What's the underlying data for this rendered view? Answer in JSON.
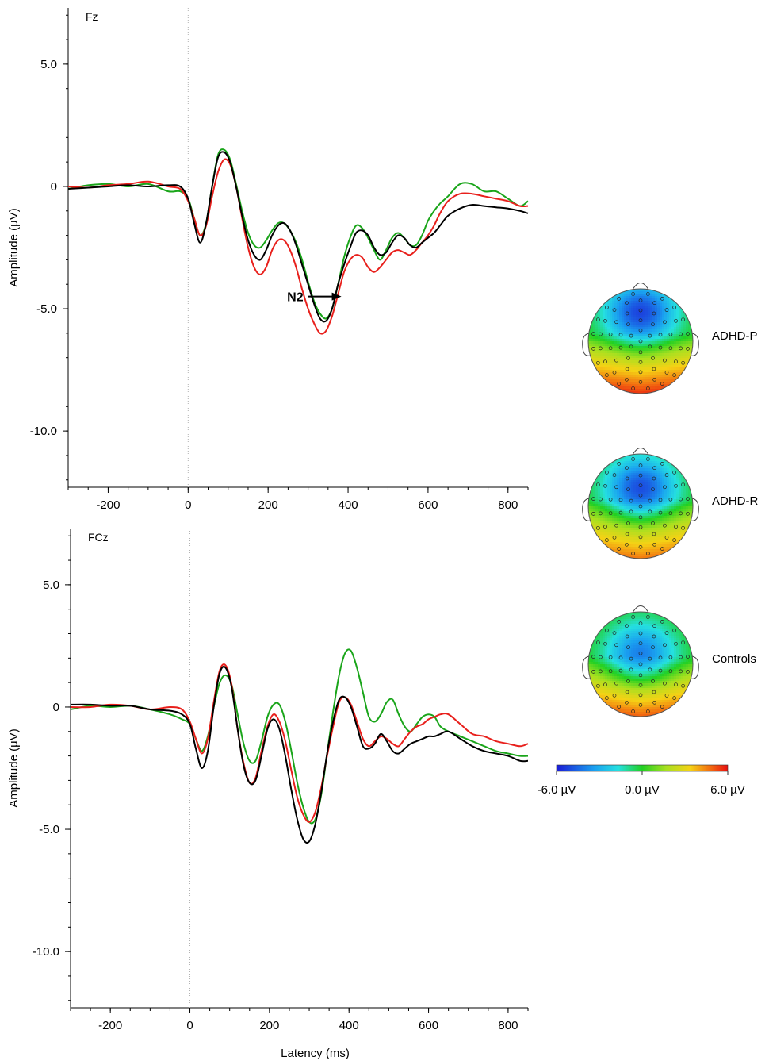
{
  "colors": {
    "ADHD-P": "#000000",
    "ADHD-R": "#e8201c",
    "Controls": "#1aa51a"
  },
  "annotation": {
    "label": "N2"
  },
  "chart_data": [
    {
      "type": "line",
      "channel": "Fz",
      "xlabel": "",
      "ylabel": "Amplitude (µV)",
      "xlim": [
        -300,
        850
      ],
      "ylim": [
        -12.3,
        7.3
      ],
      "x_ticks": [
        -200,
        0,
        200,
        400,
        600,
        800
      ],
      "y_ticks": [
        5.0,
        0,
        -5.0,
        -10.0
      ],
      "y_tick_labels": [
        "5.0",
        "0",
        "-5.0",
        "-10.0"
      ],
      "annotation": {
        "text": "N2",
        "x": 300,
        "y": -4.5
      },
      "series": [
        {
          "key": "ADHD-P",
          "color": "#000000",
          "x": [
            -300,
            -250,
            -200,
            -150,
            -100,
            -50,
            -20,
            0,
            15,
            30,
            45,
            60,
            75,
            90,
            105,
            120,
            135,
            150,
            165,
            180,
            195,
            210,
            225,
            240,
            255,
            270,
            285,
            300,
            315,
            330,
            345,
            360,
            375,
            390,
            405,
            420,
            435,
            450,
            465,
            480,
            495,
            510,
            525,
            540,
            555,
            570,
            585,
            600,
            615,
            630,
            650,
            680,
            710,
            740,
            770,
            800,
            830,
            850
          ],
          "y": [
            -0.1,
            -0.05,
            0,
            0.05,
            0,
            0.05,
            0.0,
            -0.5,
            -1.5,
            -2.3,
            -1.5,
            0.0,
            1.2,
            1.4,
            1.0,
            0.0,
            -1.2,
            -2.2,
            -2.8,
            -3.0,
            -2.6,
            -2.0,
            -1.6,
            -1.5,
            -1.8,
            -2.4,
            -3.2,
            -4.0,
            -4.8,
            -5.4,
            -5.5,
            -5.0,
            -4.0,
            -3.2,
            -2.5,
            -1.9,
            -1.8,
            -2.0,
            -2.5,
            -2.8,
            -2.7,
            -2.3,
            -2.0,
            -2.1,
            -2.4,
            -2.5,
            -2.3,
            -2.1,
            -1.9,
            -1.6,
            -1.2,
            -0.9,
            -0.75,
            -0.8,
            -0.85,
            -0.9,
            -1.0,
            -1.1
          ]
        },
        {
          "key": "ADHD-R",
          "color": "#e8201c",
          "x": [
            -300,
            -250,
            -200,
            -150,
            -100,
            -50,
            -20,
            0,
            15,
            30,
            45,
            60,
            75,
            90,
            105,
            120,
            135,
            150,
            165,
            180,
            195,
            210,
            225,
            240,
            255,
            270,
            285,
            300,
            315,
            330,
            345,
            360,
            375,
            390,
            405,
            420,
            435,
            450,
            465,
            480,
            495,
            510,
            525,
            540,
            555,
            570,
            585,
            600,
            615,
            630,
            650,
            680,
            710,
            740,
            770,
            800,
            830,
            850
          ],
          "y": [
            0,
            -0.05,
            0.05,
            0.1,
            0.2,
            0.0,
            -0.1,
            -0.6,
            -1.3,
            -2.0,
            -1.6,
            -0.4,
            0.6,
            1.1,
            0.9,
            0.0,
            -1.3,
            -2.5,
            -3.3,
            -3.6,
            -3.3,
            -2.6,
            -2.2,
            -2.2,
            -2.6,
            -3.3,
            -4.2,
            -5.0,
            -5.6,
            -6.0,
            -5.9,
            -5.3,
            -4.4,
            -3.5,
            -3.0,
            -2.8,
            -2.9,
            -3.3,
            -3.5,
            -3.3,
            -3.0,
            -2.7,
            -2.6,
            -2.7,
            -2.8,
            -2.6,
            -2.3,
            -2.0,
            -1.6,
            -1.1,
            -0.6,
            -0.3,
            -0.3,
            -0.4,
            -0.5,
            -0.6,
            -0.8,
            -0.8
          ]
        },
        {
          "key": "Controls",
          "color": "#1aa51a",
          "x": [
            -300,
            -250,
            -200,
            -150,
            -100,
            -50,
            -20,
            0,
            15,
            30,
            45,
            60,
            75,
            90,
            105,
            120,
            135,
            150,
            165,
            180,
            195,
            210,
            225,
            240,
            255,
            270,
            285,
            300,
            315,
            330,
            345,
            360,
            375,
            390,
            405,
            420,
            435,
            450,
            465,
            480,
            495,
            510,
            525,
            540,
            555,
            570,
            585,
            600,
            615,
            630,
            650,
            680,
            710,
            740,
            770,
            800,
            830,
            850
          ],
          "y": [
            -0.1,
            0.05,
            0.1,
            0,
            0.1,
            -0.2,
            -0.2,
            -0.5,
            -1.3,
            -2.0,
            -1.5,
            0.0,
            1.3,
            1.5,
            1.1,
            0.1,
            -1.0,
            -1.9,
            -2.4,
            -2.5,
            -2.2,
            -1.8,
            -1.5,
            -1.5,
            -1.8,
            -2.3,
            -3.0,
            -3.9,
            -4.7,
            -5.2,
            -5.4,
            -5.0,
            -4.0,
            -2.9,
            -2.1,
            -1.6,
            -1.7,
            -2.1,
            -2.6,
            -3.0,
            -2.6,
            -2.1,
            -1.9,
            -2.1,
            -2.4,
            -2.4,
            -2.0,
            -1.4,
            -1.0,
            -0.7,
            -0.4,
            0.1,
            0.1,
            -0.2,
            -0.2,
            -0.5,
            -0.8,
            -0.6
          ]
        }
      ]
    },
    {
      "type": "line",
      "channel": "FCz",
      "xlabel": "Latency (ms)",
      "ylabel": "Amplitude (µV)",
      "xlim": [
        -300,
        850
      ],
      "ylim": [
        -12.3,
        7.3
      ],
      "x_ticks": [
        -200,
        0,
        200,
        400,
        600,
        800
      ],
      "y_ticks": [
        5.0,
        0,
        -5.0,
        -10.0
      ],
      "y_tick_labels": [
        "5.0",
        "0",
        "-5.0",
        "-10.0"
      ],
      "series": [
        {
          "key": "ADHD-P",
          "color": "#000000",
          "x": [
            -300,
            -250,
            -200,
            -150,
            -100,
            -50,
            -20,
            0,
            15,
            30,
            45,
            60,
            75,
            90,
            105,
            120,
            135,
            150,
            165,
            180,
            195,
            210,
            225,
            240,
            255,
            270,
            285,
            300,
            315,
            330,
            345,
            360,
            375,
            390,
            405,
            420,
            435,
            450,
            465,
            480,
            495,
            510,
            525,
            540,
            555,
            570,
            585,
            600,
            615,
            630,
            650,
            680,
            710,
            740,
            770,
            800,
            830,
            850
          ],
          "y": [
            0.1,
            0.1,
            0.05,
            0.05,
            -0.1,
            -0.15,
            -0.3,
            -0.7,
            -1.7,
            -2.5,
            -1.8,
            0.0,
            1.4,
            1.6,
            0.8,
            -0.9,
            -2.4,
            -3.1,
            -3.0,
            -2.0,
            -0.9,
            -0.5,
            -0.9,
            -2.0,
            -3.4,
            -4.6,
            -5.4,
            -5.5,
            -4.8,
            -3.5,
            -1.9,
            -0.6,
            0.3,
            0.4,
            0.0,
            -0.8,
            -1.6,
            -1.7,
            -1.5,
            -1.1,
            -1.4,
            -1.8,
            -1.9,
            -1.7,
            -1.5,
            -1.4,
            -1.3,
            -1.2,
            -1.2,
            -1.1,
            -1.0,
            -1.3,
            -1.6,
            -1.8,
            -1.9,
            -2.0,
            -2.2,
            -2.2
          ]
        },
        {
          "key": "ADHD-R",
          "color": "#e8201c",
          "x": [
            -300,
            -250,
            -200,
            -150,
            -100,
            -50,
            -20,
            0,
            15,
            30,
            45,
            60,
            75,
            90,
            105,
            120,
            135,
            150,
            165,
            180,
            195,
            210,
            225,
            240,
            255,
            270,
            285,
            300,
            315,
            330,
            345,
            360,
            375,
            390,
            405,
            420,
            435,
            450,
            465,
            480,
            495,
            510,
            525,
            540,
            555,
            570,
            585,
            600,
            615,
            630,
            650,
            680,
            710,
            740,
            770,
            800,
            830,
            850
          ],
          "y": [
            0,
            0,
            0.1,
            0.05,
            -0.1,
            0,
            -0.1,
            -0.6,
            -1.3,
            -1.9,
            -1.3,
            0.2,
            1.5,
            1.7,
            0.9,
            -0.9,
            -2.3,
            -3.1,
            -2.9,
            -1.8,
            -0.8,
            -0.3,
            -0.6,
            -1.4,
            -2.6,
            -3.7,
            -4.4,
            -4.7,
            -4.3,
            -3.3,
            -2.0,
            -0.8,
            0.2,
            0.4,
            0.1,
            -0.6,
            -1.3,
            -1.6,
            -1.4,
            -1.2,
            -1.3,
            -1.5,
            -1.6,
            -1.3,
            -1.0,
            -0.8,
            -0.7,
            -0.5,
            -0.4,
            -0.3,
            -0.3,
            -0.7,
            -1.1,
            -1.2,
            -1.4,
            -1.5,
            -1.6,
            -1.5
          ]
        },
        {
          "key": "Controls",
          "color": "#1aa51a",
          "x": [
            -300,
            -250,
            -200,
            -150,
            -100,
            -50,
            -20,
            0,
            15,
            30,
            45,
            60,
            75,
            90,
            105,
            120,
            135,
            150,
            165,
            180,
            195,
            210,
            225,
            240,
            255,
            270,
            285,
            300,
            315,
            330,
            345,
            360,
            375,
            390,
            405,
            420,
            435,
            450,
            465,
            480,
            495,
            510,
            525,
            540,
            555,
            570,
            585,
            600,
            615,
            630,
            650,
            680,
            710,
            740,
            770,
            800,
            830,
            850
          ],
          "y": [
            -0.1,
            0.05,
            0,
            0.05,
            -0.1,
            -0.3,
            -0.5,
            -0.7,
            -1.3,
            -1.8,
            -1.2,
            0.0,
            1.0,
            1.3,
            0.9,
            -0.3,
            -1.5,
            -2.2,
            -2.2,
            -1.4,
            -0.4,
            0.1,
            0.1,
            -0.6,
            -1.8,
            -3.1,
            -4.1,
            -4.7,
            -4.6,
            -3.6,
            -1.9,
            -0.2,
            1.3,
            2.2,
            2.3,
            1.6,
            0.6,
            -0.4,
            -0.6,
            -0.3,
            0.2,
            0.3,
            -0.3,
            -0.8,
            -1.0,
            -0.7,
            -0.4,
            -0.3,
            -0.4,
            -0.8,
            -1.0,
            -1.2,
            -1.4,
            -1.6,
            -1.8,
            -1.9,
            -2.0,
            -2.0
          ]
        }
      ]
    }
  ],
  "topomaps": [
    {
      "label": "ADHD-P",
      "center_value": -5.2,
      "center_y": -0.55,
      "posterior_value": 5.5
    },
    {
      "label": "ADHD-R",
      "center_value": -5.0,
      "center_y": -0.35,
      "posterior_value": 4.6
    },
    {
      "label": "Controls",
      "center_value": -4.0,
      "center_y": -0.2,
      "posterior_value": 5.0
    }
  ],
  "colorbar": {
    "min": -6.0,
    "max": 6.0,
    "labels": [
      "-6.0 µV",
      "0.0 µV",
      "6.0 µV"
    ]
  }
}
